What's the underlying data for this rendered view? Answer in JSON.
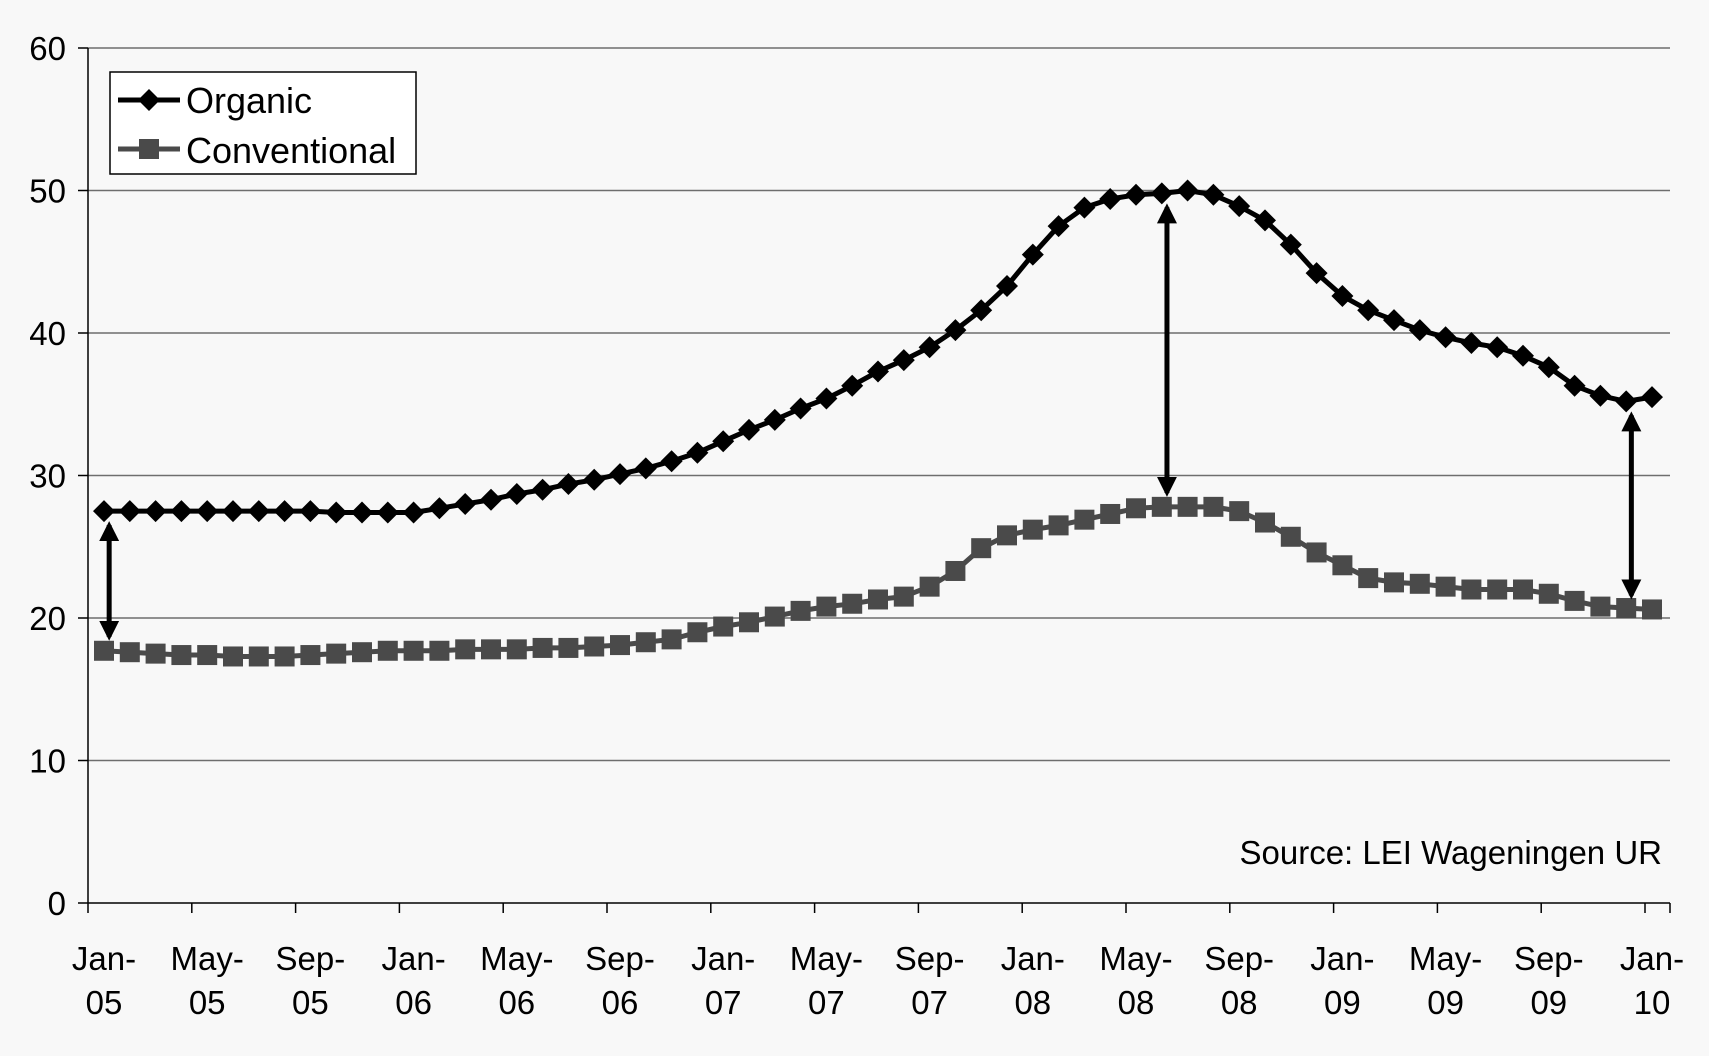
{
  "chart_data": {
    "type": "line",
    "title": "",
    "xlabel": "",
    "ylabel": "",
    "ylim": [
      0,
      60
    ],
    "yticks": [
      0,
      10,
      20,
      30,
      40,
      50,
      60
    ],
    "xticks": [
      {
        "index": 0,
        "line1": "Jan-",
        "line2": "05"
      },
      {
        "index": 4,
        "line1": "May-",
        "line2": "05"
      },
      {
        "index": 8,
        "line1": "Sep-",
        "line2": "05"
      },
      {
        "index": 12,
        "line1": "Jan-",
        "line2": "06"
      },
      {
        "index": 16,
        "line1": "May-",
        "line2": "06"
      },
      {
        "index": 20,
        "line1": "Sep-",
        "line2": "06"
      },
      {
        "index": 24,
        "line1": "Jan-",
        "line2": "07"
      },
      {
        "index": 28,
        "line1": "May-",
        "line2": "07"
      },
      {
        "index": 32,
        "line1": "Sep-",
        "line2": "07"
      },
      {
        "index": 36,
        "line1": "Jan-",
        "line2": "08"
      },
      {
        "index": 40,
        "line1": "May-",
        "line2": "08"
      },
      {
        "index": 44,
        "line1": "Sep-",
        "line2": "08"
      },
      {
        "index": 48,
        "line1": "Jan-",
        "line2": "09"
      },
      {
        "index": 52,
        "line1": "May-",
        "line2": "09"
      },
      {
        "index": 56,
        "line1": "Sep-",
        "line2": "09"
      },
      {
        "index": 60,
        "line1": "Jan-",
        "line2": "10"
      }
    ],
    "grid": "horizontal",
    "legend_position": "top-left",
    "annotation": "Source: LEI Wageningen UR",
    "series": [
      {
        "name": "Organic",
        "color": "#000000",
        "marker": "diamond",
        "values": [
          27.5,
          27.5,
          27.5,
          27.5,
          27.5,
          27.5,
          27.5,
          27.5,
          27.5,
          27.4,
          27.4,
          27.4,
          27.4,
          27.7,
          28.0,
          28.3,
          28.7,
          29.0,
          29.4,
          29.7,
          30.1,
          30.5,
          31.0,
          31.6,
          32.4,
          33.2,
          33.9,
          34.7,
          35.4,
          36.3,
          37.3,
          38.1,
          39.0,
          40.2,
          41.6,
          43.3,
          45.5,
          47.5,
          48.8,
          49.4,
          49.7,
          49.8,
          50.0,
          49.7,
          48.9,
          47.9,
          46.2,
          44.2,
          42.6,
          41.6,
          40.9,
          40.2,
          39.7,
          39.3,
          39.0,
          38.4,
          37.6,
          36.3,
          35.6,
          35.2,
          35.5
        ]
      },
      {
        "name": "Conventional",
        "color": "#4a4a4a",
        "marker": "square",
        "values": [
          17.7,
          17.6,
          17.5,
          17.4,
          17.4,
          17.3,
          17.3,
          17.3,
          17.4,
          17.5,
          17.6,
          17.7,
          17.7,
          17.7,
          17.8,
          17.8,
          17.8,
          17.9,
          17.9,
          18.0,
          18.1,
          18.3,
          18.5,
          19.0,
          19.4,
          19.7,
          20.1,
          20.5,
          20.8,
          21.0,
          21.3,
          21.5,
          22.2,
          23.3,
          24.9,
          25.8,
          26.2,
          26.5,
          26.9,
          27.3,
          27.7,
          27.8,
          27.8,
          27.8,
          27.5,
          26.7,
          25.7,
          24.6,
          23.7,
          22.8,
          22.5,
          22.4,
          22.2,
          22.0,
          22.0,
          22.0,
          21.7,
          21.2,
          20.8,
          20.7,
          20.6
        ]
      }
    ],
    "arrows": [
      {
        "index": 0.2,
        "from": 27.5,
        "to": 17.7
      },
      {
        "index": 41.2,
        "from": 49.8,
        "to": 27.8
      },
      {
        "index": 59.2,
        "from": 35.2,
        "to": 20.6
      }
    ]
  }
}
